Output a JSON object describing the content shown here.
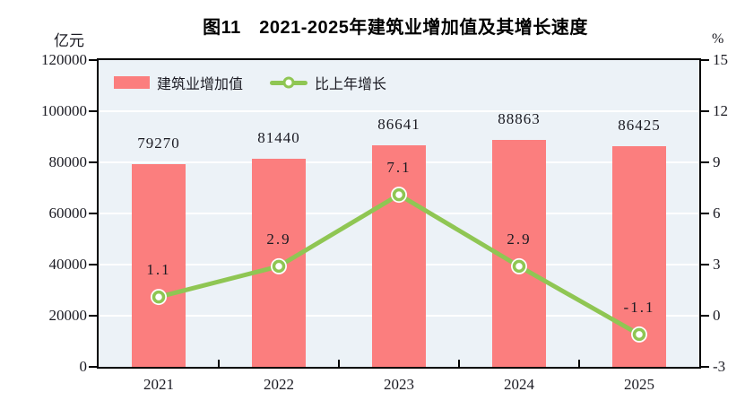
{
  "title": "图11　2021-2025年建筑业增加值及其增长速度",
  "left_axis_unit": "亿元",
  "right_axis_unit": "%",
  "legend": {
    "bar_label": "建筑业增加值",
    "line_label": "比上年增长"
  },
  "colors": {
    "bar": "#FB7E7E",
    "line": "#8FC653",
    "plot_bg": "#ECF2F7",
    "grid": "#FFFFFF",
    "axis": "#000000",
    "text": "#1A1A22"
  },
  "chart_data": {
    "type": "bar+line",
    "categories": [
      "2021",
      "2022",
      "2023",
      "2024",
      "2025"
    ],
    "series": [
      {
        "name": "建筑业增加值",
        "type": "bar",
        "axis": "left",
        "unit": "亿元",
        "values": [
          79270,
          81440,
          86641,
          88863,
          86425
        ]
      },
      {
        "name": "比上年增长",
        "type": "line",
        "axis": "right",
        "unit": "%",
        "values": [
          1.1,
          2.9,
          7.1,
          2.9,
          -1.1
        ]
      }
    ],
    "left_axis": {
      "label": "亿元",
      "min": 0,
      "max": 120000,
      "step": 20000,
      "ticks": [
        "120000",
        "100000",
        "80000",
        "60000",
        "40000",
        "20000",
        "0"
      ]
    },
    "right_axis": {
      "label": "%",
      "min": -3,
      "max": 15,
      "step": 3,
      "ticks": [
        "15",
        "12",
        "9",
        "6",
        "3",
        "0",
        "-3"
      ]
    },
    "grid": true,
    "legend_position": "top-left-inside"
  }
}
